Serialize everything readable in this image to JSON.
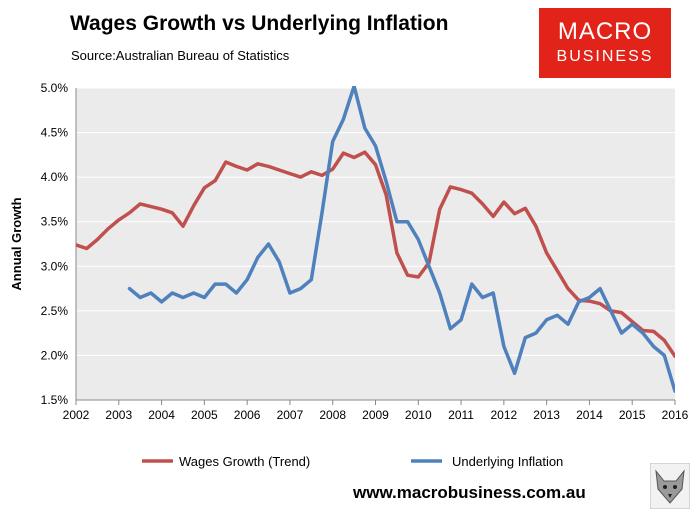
{
  "header": {
    "title": "Wages Growth vs Underlying Inflation",
    "subtitle": "Source:Australian Bureau of Statistics"
  },
  "logo": {
    "line1": "MACRO",
    "line2": "BUSINESS",
    "color": "#e2231a"
  },
  "footer": {
    "url": "www.macrobusiness.com.au",
    "mascot_icon": "fox-icon"
  },
  "chart_data": {
    "type": "line",
    "ylabel": "Annual Growth",
    "xlabel": "",
    "xlim": [
      2002,
      2016
    ],
    "ylim": [
      1.5,
      5.0
    ],
    "x_ticks": [
      "2002",
      "2003",
      "2004",
      "2005",
      "2006",
      "2007",
      "2008",
      "2009",
      "2010",
      "2011",
      "2012",
      "2013",
      "2014",
      "2015",
      "2016"
    ],
    "y_ticks": [
      "1.5%",
      "2.0%",
      "2.5%",
      "3.0%",
      "3.5%",
      "4.0%",
      "4.5%",
      "5.0%"
    ],
    "grid": "horizontal",
    "legend_position": "bottom",
    "series": [
      {
        "name": "Wages Growth (Trend)",
        "color": "#c0504d",
        "x": [
          2002.0,
          2002.25,
          2002.5,
          2002.75,
          2003.0,
          2003.25,
          2003.5,
          2003.75,
          2004.0,
          2004.25,
          2004.5,
          2004.75,
          2005.0,
          2005.25,
          2005.5,
          2005.75,
          2006.0,
          2006.25,
          2006.5,
          2006.75,
          2007.0,
          2007.25,
          2007.5,
          2007.75,
          2008.0,
          2008.25,
          2008.5,
          2008.75,
          2009.0,
          2009.25,
          2009.5,
          2009.75,
          2010.0,
          2010.25,
          2010.5,
          2010.75,
          2011.0,
          2011.25,
          2011.5,
          2011.75,
          2012.0,
          2012.25,
          2012.5,
          2012.75,
          2013.0,
          2013.25,
          2013.5,
          2013.75,
          2014.0,
          2014.25,
          2014.5,
          2014.75,
          2015.0,
          2015.25,
          2015.5,
          2015.75,
          2016.0
        ],
        "values": [
          3.24,
          3.2,
          3.3,
          3.42,
          3.52,
          3.6,
          3.7,
          3.67,
          3.64,
          3.6,
          3.45,
          3.68,
          3.88,
          3.96,
          4.17,
          4.12,
          4.08,
          4.15,
          4.12,
          4.08,
          4.04,
          4.0,
          4.06,
          4.02,
          4.09,
          4.27,
          4.22,
          4.28,
          4.14,
          3.8,
          3.15,
          2.9,
          2.88,
          3.04,
          3.64,
          3.89,
          3.86,
          3.82,
          3.7,
          3.56,
          3.72,
          3.59,
          3.65,
          3.45,
          3.15,
          2.95,
          2.75,
          2.62,
          2.61,
          2.58,
          2.5,
          2.48,
          2.38,
          2.28,
          2.27,
          2.17,
          1.99
        ]
      },
      {
        "name": "Underlying Inflation",
        "color": "#4f81bd",
        "x": [
          2003.25,
          2003.5,
          2003.75,
          2004.0,
          2004.25,
          2004.5,
          2004.75,
          2005.0,
          2005.25,
          2005.5,
          2005.75,
          2006.0,
          2006.25,
          2006.5,
          2006.75,
          2007.0,
          2007.25,
          2007.5,
          2007.75,
          2008.0,
          2008.25,
          2008.5,
          2008.75,
          2009.0,
          2009.25,
          2009.5,
          2009.75,
          2010.0,
          2010.25,
          2010.5,
          2010.75,
          2011.0,
          2011.25,
          2011.5,
          2011.75,
          2012.0,
          2012.25,
          2012.5,
          2012.75,
          2013.0,
          2013.25,
          2013.5,
          2013.75,
          2014.0,
          2014.25,
          2014.5,
          2014.75,
          2015.0,
          2015.25,
          2015.5,
          2015.75,
          2016.0
        ],
        "values": [
          2.75,
          2.65,
          2.7,
          2.6,
          2.7,
          2.65,
          2.7,
          2.65,
          2.8,
          2.8,
          2.7,
          2.85,
          3.1,
          3.25,
          3.05,
          2.7,
          2.75,
          2.85,
          3.6,
          4.4,
          4.65,
          5.02,
          4.55,
          4.35,
          3.95,
          3.5,
          3.5,
          3.3,
          3.0,
          2.7,
          2.3,
          2.4,
          2.8,
          2.65,
          2.7,
          2.1,
          1.8,
          2.2,
          2.25,
          2.4,
          2.45,
          2.35,
          2.6,
          2.65,
          2.75,
          2.5,
          2.25,
          2.35,
          2.25,
          2.1,
          2.0,
          1.6
        ]
      }
    ]
  }
}
